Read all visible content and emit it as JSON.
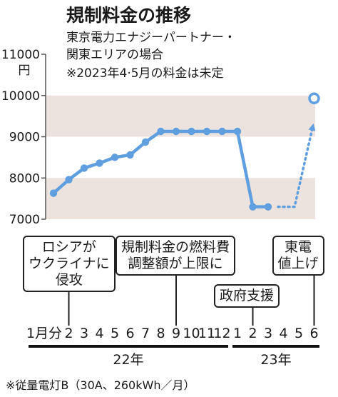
{
  "title": "規制料金の推移",
  "subtitle_lines": [
    "東京電力エナジーパートナー・",
    "関東エリアの場合",
    "※2023年4·5月の料金は未定"
  ],
  "footnote": "※従量電灯B（30A、260kWh／月）",
  "colors": {
    "line": "#5f9fe0",
    "band": "#ece3de",
    "text": "#1a1a1a"
  },
  "chart_data": {
    "type": "line",
    "title": "規制料金の推移",
    "ylabel": "円",
    "ylim": [
      7000,
      11000
    ],
    "yticks": [
      7000,
      8000,
      9000,
      10000,
      11000
    ],
    "y_unit": "円",
    "x_ticks": [
      "1月分",
      "2",
      "3",
      "4",
      "5",
      "6",
      "7",
      "8",
      "9",
      "10",
      "11",
      "12",
      "1",
      "2",
      "3",
      "4",
      "5",
      "6"
    ],
    "year_labels": [
      "22年",
      "23年"
    ],
    "series": [
      {
        "points": [
          [
            1,
            7630
          ],
          [
            2,
            7960
          ],
          [
            3,
            8240
          ],
          [
            4,
            8360
          ],
          [
            5,
            8500
          ],
          [
            6,
            8560
          ],
          [
            7,
            8870
          ],
          [
            8,
            9130
          ],
          [
            9,
            9130
          ],
          [
            10,
            9130
          ],
          [
            11,
            9130
          ],
          [
            12,
            9130
          ],
          [
            13,
            9130
          ],
          [
            14,
            7300
          ],
          [
            15,
            7300
          ]
        ]
      }
    ],
    "projection": {
      "style": "dotted",
      "points": [
        [
          16,
          7300
        ],
        [
          17,
          7300
        ],
        [
          18,
          9930
        ]
      ]
    },
    "annotations": [
      {
        "text": "ロシアが\nウクライナに\n侵攻",
        "x": 2
      },
      {
        "text": "規制料金の燃料費\n調整額が上限に",
        "x": 9
      },
      {
        "text": "政府支援",
        "x": 14
      },
      {
        "text": "東電\n値上げ",
        "x": 18
      }
    ]
  }
}
